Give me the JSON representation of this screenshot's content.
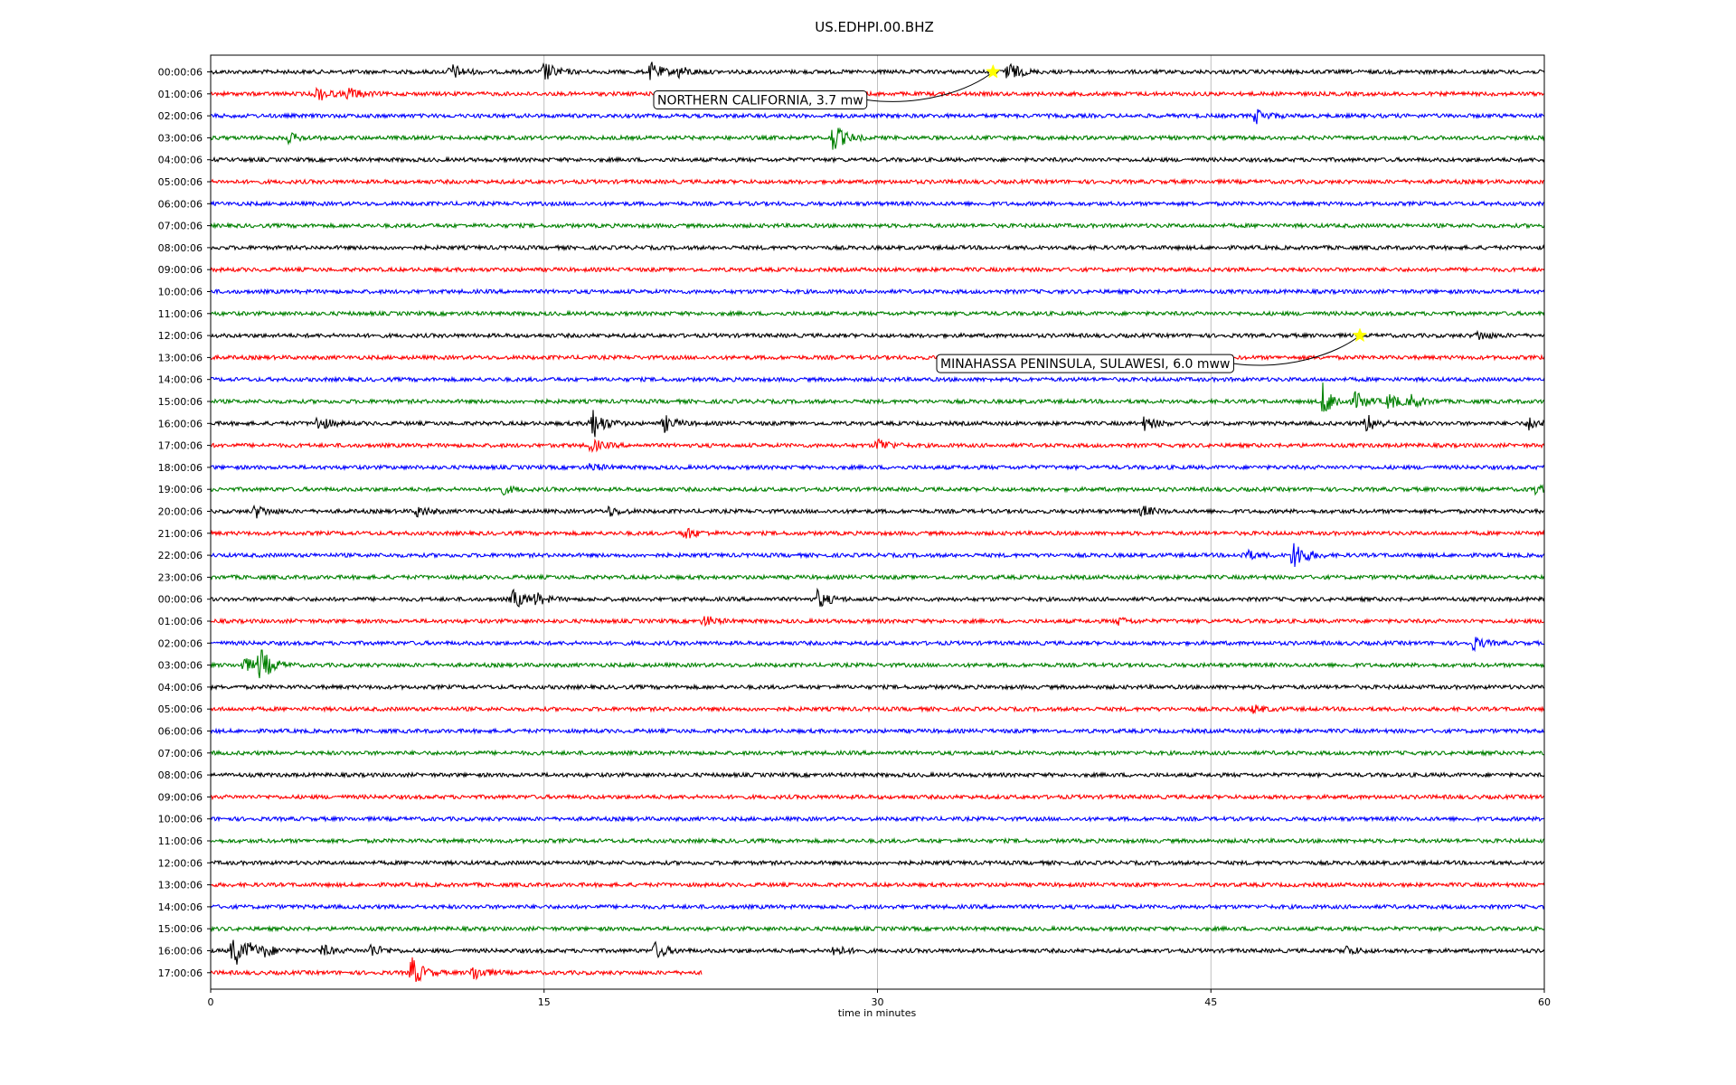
{
  "chart_data": {
    "type": "line",
    "title": "US.EDHPI.00.BHZ",
    "xlabel": "time in minutes",
    "ylabel": "",
    "xlim": [
      0,
      60
    ],
    "x_ticks": [
      0,
      15,
      30,
      45,
      60
    ],
    "x_tick_labels": [
      "0",
      "15",
      "30",
      "45",
      "60"
    ],
    "grid": "vertical",
    "legend": "none",
    "row_colors": [
      "#000000",
      "#ff0000",
      "#0000ff",
      "#008000"
    ],
    "rows": [
      {
        "label": "00:00:06",
        "end_minute": 60,
        "bursts": [
          {
            "t": 10.8,
            "a": 0.45
          },
          {
            "t": 15.0,
            "a": 0.55
          },
          {
            "t": 19.8,
            "a": 0.5
          },
          {
            "t": 21.0,
            "a": 0.35
          },
          {
            "t": 35.8,
            "a": 0.6
          }
        ]
      },
      {
        "label": "01:00:06",
        "end_minute": 60,
        "bursts": [
          {
            "t": 4.8,
            "a": 0.4
          },
          {
            "t": 6.2,
            "a": 0.35
          }
        ]
      },
      {
        "label": "02:00:06",
        "end_minute": 60,
        "bursts": [
          {
            "t": 47.0,
            "a": 0.4
          }
        ]
      },
      {
        "label": "03:00:06",
        "end_minute": 60,
        "bursts": [
          {
            "t": 3.5,
            "a": 0.25
          },
          {
            "t": 28.0,
            "a": 0.8
          }
        ]
      },
      {
        "label": "04:00:06",
        "end_minute": 60,
        "bursts": []
      },
      {
        "label": "05:00:06",
        "end_minute": 60,
        "bursts": []
      },
      {
        "label": "06:00:06",
        "end_minute": 60,
        "bursts": []
      },
      {
        "label": "07:00:06",
        "end_minute": 60,
        "bursts": []
      },
      {
        "label": "08:00:06",
        "end_minute": 60,
        "bursts": []
      },
      {
        "label": "09:00:06",
        "end_minute": 60,
        "bursts": []
      },
      {
        "label": "10:00:06",
        "end_minute": 60,
        "bursts": []
      },
      {
        "label": "11:00:06",
        "end_minute": 60,
        "bursts": []
      },
      {
        "label": "12:00:06",
        "end_minute": 60,
        "bursts": [
          {
            "t": 57.0,
            "a": 0.25
          }
        ]
      },
      {
        "label": "13:00:06",
        "end_minute": 60,
        "bursts": []
      },
      {
        "label": "14:00:06",
        "end_minute": 60,
        "bursts": []
      },
      {
        "label": "15:00:06",
        "end_minute": 60,
        "bursts": [
          {
            "t": 50.0,
            "a": 1.0
          },
          {
            "t": 51.5,
            "a": 0.5
          },
          {
            "t": 53.0,
            "a": 0.45
          },
          {
            "t": 54.0,
            "a": 0.4
          }
        ]
      },
      {
        "label": "16:00:06",
        "end_minute": 60,
        "bursts": [
          {
            "t": 4.8,
            "a": 0.4
          },
          {
            "t": 17.1,
            "a": 1.0
          },
          {
            "t": 20.4,
            "a": 0.45
          },
          {
            "t": 42.0,
            "a": 0.35
          },
          {
            "t": 52.0,
            "a": 0.5
          },
          {
            "t": 59.3,
            "a": 0.35
          }
        ]
      },
      {
        "label": "17:00:06",
        "end_minute": 60,
        "bursts": [
          {
            "t": 17.1,
            "a": 0.35
          },
          {
            "t": 30.0,
            "a": 0.4
          }
        ]
      },
      {
        "label": "18:00:06",
        "end_minute": 60,
        "bursts": [
          {
            "t": 17.1,
            "a": 0.2
          }
        ]
      },
      {
        "label": "19:00:06",
        "end_minute": 60,
        "bursts": [
          {
            "t": 13.0,
            "a": 0.3
          },
          {
            "t": 59.5,
            "a": 0.25
          }
        ]
      },
      {
        "label": "20:00:06",
        "end_minute": 60,
        "bursts": [
          {
            "t": 2.0,
            "a": 0.35
          },
          {
            "t": 9.3,
            "a": 0.3
          },
          {
            "t": 17.9,
            "a": 0.25
          },
          {
            "t": 41.9,
            "a": 0.3
          }
        ]
      },
      {
        "label": "21:00:06",
        "end_minute": 60,
        "bursts": [
          {
            "t": 21.3,
            "a": 0.35
          }
        ]
      },
      {
        "label": "22:00:06",
        "end_minute": 60,
        "bursts": [
          {
            "t": 46.5,
            "a": 0.3
          },
          {
            "t": 48.7,
            "a": 0.9
          }
        ]
      },
      {
        "label": "23:00:06",
        "end_minute": 60,
        "bursts": []
      },
      {
        "label": "00:00:06",
        "end_minute": 60,
        "bursts": [
          {
            "t": 13.6,
            "a": 0.55
          },
          {
            "t": 14.6,
            "a": 0.35
          },
          {
            "t": 27.3,
            "a": 0.5
          }
        ]
      },
      {
        "label": "01:00:06",
        "end_minute": 60,
        "bursts": [
          {
            "t": 22.2,
            "a": 0.3
          },
          {
            "t": 40.8,
            "a": 0.2
          }
        ]
      },
      {
        "label": "02:00:06",
        "end_minute": 60,
        "bursts": [
          {
            "t": 56.8,
            "a": 0.35
          }
        ]
      },
      {
        "label": "03:00:06",
        "end_minute": 60,
        "bursts": [
          {
            "t": 1.5,
            "a": 0.4
          },
          {
            "t": 2.2,
            "a": 1.0
          }
        ]
      },
      {
        "label": "04:00:06",
        "end_minute": 60,
        "bursts": []
      },
      {
        "label": "05:00:06",
        "end_minute": 60,
        "bursts": [
          {
            "t": 46.9,
            "a": 0.2
          }
        ]
      },
      {
        "label": "06:00:06",
        "end_minute": 60,
        "bursts": []
      },
      {
        "label": "07:00:06",
        "end_minute": 60,
        "bursts": []
      },
      {
        "label": "08:00:06",
        "end_minute": 60,
        "bursts": []
      },
      {
        "label": "09:00:06",
        "end_minute": 60,
        "bursts": []
      },
      {
        "label": "10:00:06",
        "end_minute": 60,
        "bursts": []
      },
      {
        "label": "11:00:06",
        "end_minute": 60,
        "bursts": []
      },
      {
        "label": "12:00:06",
        "end_minute": 60,
        "bursts": []
      },
      {
        "label": "13:00:06",
        "end_minute": 60,
        "bursts": []
      },
      {
        "label": "14:00:06",
        "end_minute": 60,
        "bursts": []
      },
      {
        "label": "15:00:06",
        "end_minute": 60,
        "bursts": []
      },
      {
        "label": "16:00:06",
        "end_minute": 60,
        "bursts": [
          {
            "t": 1.0,
            "a": 1.0
          },
          {
            "t": 1.7,
            "a": 0.5
          },
          {
            "t": 2.4,
            "a": 0.35
          },
          {
            "t": 5.0,
            "a": 0.3
          },
          {
            "t": 7.2,
            "a": 0.35
          },
          {
            "t": 20.0,
            "a": 0.45
          },
          {
            "t": 28.0,
            "a": 0.3
          },
          {
            "t": 51.0,
            "a": 0.3
          }
        ]
      },
      {
        "label": "17:00:06",
        "end_minute": 22.1,
        "bursts": [
          {
            "t": 9.0,
            "a": 0.9
          },
          {
            "t": 11.8,
            "a": 0.45
          }
        ]
      }
    ],
    "events": [
      {
        "label": "NORTHERN CALIFORNIA, 3.7 mw",
        "row": 0,
        "minute": 35.2,
        "marker": "star",
        "marker_color": "#ffff00"
      },
      {
        "label": "MINAHASSA PENINSULA, SULAWESI, 6.0 mww",
        "row": 12,
        "minute": 51.7,
        "marker": "star",
        "marker_color": "#ffff00"
      }
    ]
  }
}
